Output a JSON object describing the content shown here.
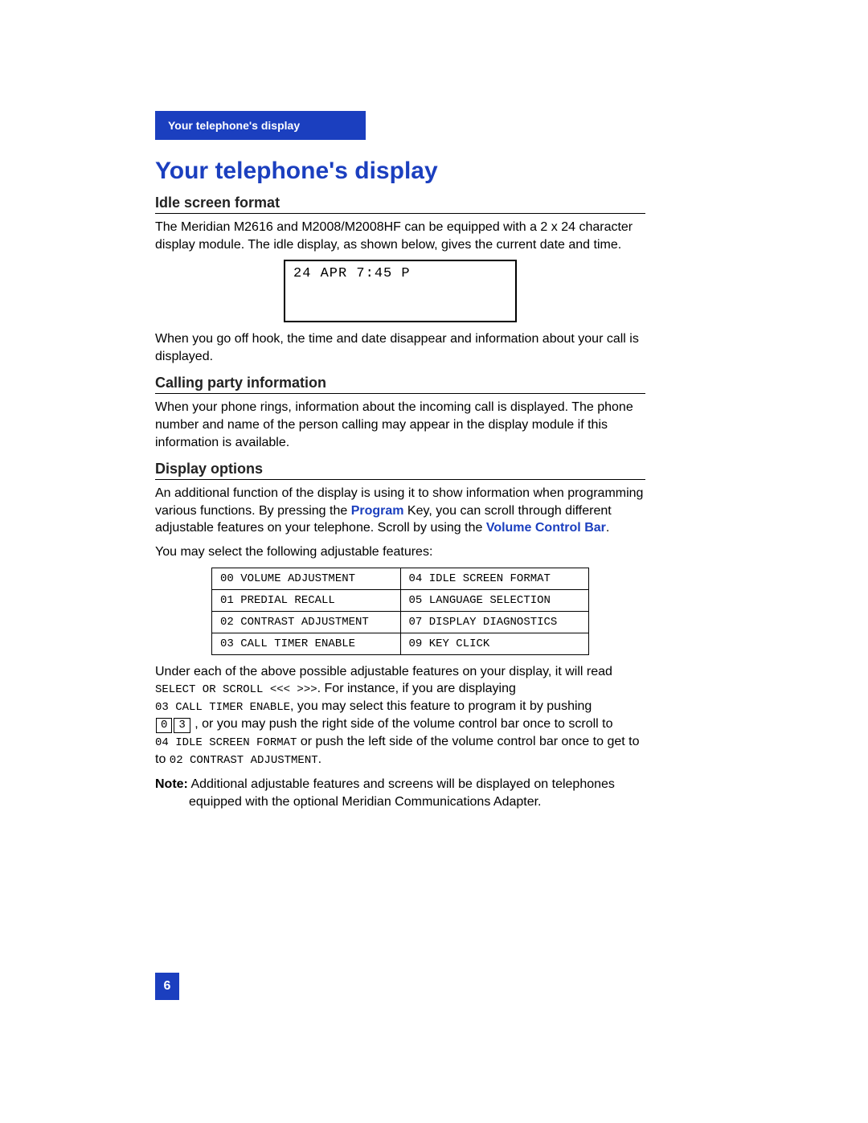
{
  "header": {
    "text": "Your telephone's display"
  },
  "title": "Your telephone's display",
  "section1": {
    "heading": "Idle screen format",
    "p1": "The Meridian M2616 and M2008/M2008HF can be equipped with a  2 x 24 character display module.  The idle display, as shown below, gives the current date and time.",
    "display_text": "24 APR 7:45 P",
    "p2": "When you go off hook, the time and date disappear and information about your call is displayed."
  },
  "section2": {
    "heading": "Calling party information",
    "p1": "When your phone rings, information about the incoming call is displayed.  The phone number and name of the person calling may appear in the display module if this information is available."
  },
  "section3": {
    "heading": "Display options",
    "p1a": "An additional function of the display is using it to show information when programming various functions.  By pressing the ",
    "p1_program": "Program",
    "p1b": " Key, you can scroll through different adjustable features on your telephone.  Scroll by using the ",
    "p1_vcb": "Volume Control Bar",
    "p1c": ".",
    "p2": "You may select the following adjustable features:",
    "features_left": [
      "00 VOLUME ADJUSTMENT",
      "01 PREDIAL RECALL",
      "02 CONTRAST ADJUSTMENT",
      "03 CALL TIMER ENABLE"
    ],
    "features_right": [
      "04 IDLE SCREEN FORMAT",
      "05 LANGUAGE SELECTION",
      "07 DISPLAY DIAGNOSTICS",
      "09 KEY CLICK"
    ],
    "p3a": "Under each of the above possible adjustable features on your display, it will read ",
    "p3_mono1": "SELECT OR SCROLL  <<<   >>>",
    "p3b": ".  For instance, if you are displaying ",
    "p3_mono2": "03 CALL TIMER ENABLE",
    "p3c": ", you may select this feature to program it by pushing ",
    "key0": "0",
    "key3": "3",
    "p3d": " , or you may push the right side of the volume control bar once to scroll to ",
    "p3_mono3": "04 IDLE SCREEN FORMAT",
    "p3e": " or push the left side of the volume control bar once to get to ",
    "p3_mono4": "02 CONTRAST ADJUSTMENT",
    "p3f": ".",
    "note_label": "Note:",
    "note_text1": " Additional adjustable features and screens will be displayed on telephones",
    "note_text2": "equipped with the optional Meridian Communications Adapter."
  },
  "page_number": "6"
}
